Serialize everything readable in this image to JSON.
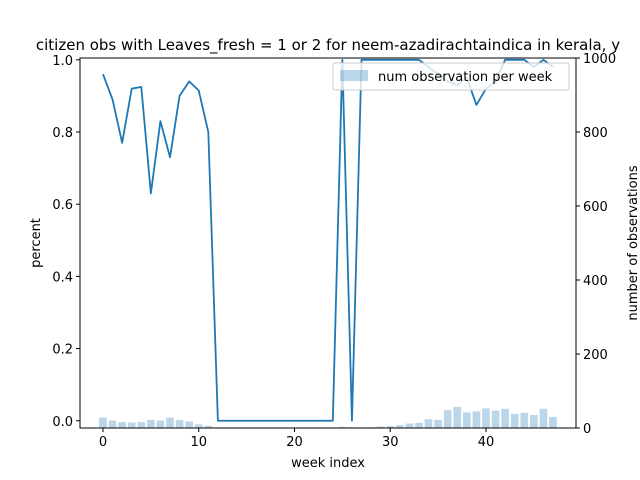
{
  "chart_data": {
    "type": "line",
    "title": "citizen obs with Leaves_fresh = 1 or 2 for neem-azadirachtaindica in kerala, y",
    "xlabel": "week index",
    "ylabel": "percent",
    "y2label": "number of observations",
    "xlim": [
      -2.4,
      49.4
    ],
    "ylim": [
      -0.02,
      1.005
    ],
    "y2lim": [
      0,
      1000
    ],
    "xticks": [
      0,
      10,
      20,
      30,
      40
    ],
    "yticks": [
      0.0,
      0.2,
      0.4,
      0.6,
      0.8,
      1.0
    ],
    "y2ticks": [
      0,
      200,
      400,
      600,
      800,
      1000
    ],
    "legend": {
      "position": "top-right",
      "label": "num observation per week"
    },
    "colors": {
      "line": "#1f77b4",
      "bars": "#1f77b4",
      "bar_opacity": 0.3
    },
    "series": [
      {
        "name": "percent",
        "kind": "line",
        "x": [
          0,
          1,
          2,
          3,
          4,
          5,
          6,
          7,
          8,
          9,
          10,
          11,
          12,
          13,
          14,
          15,
          16,
          17,
          18,
          19,
          20,
          21,
          22,
          23,
          24,
          25,
          26,
          27,
          28,
          29,
          30,
          31,
          32,
          33,
          34,
          35,
          36,
          37,
          38,
          39,
          40,
          41,
          42,
          43,
          44,
          45,
          46,
          47
        ],
        "values": [
          0.96,
          0.89,
          0.77,
          0.92,
          0.925,
          0.63,
          0.83,
          0.73,
          0.9,
          0.94,
          0.915,
          0.8,
          0.0,
          0.0,
          0.0,
          0.0,
          0.0,
          0.0,
          0.0,
          0.0,
          0.0,
          0.0,
          0.0,
          0.0,
          0.0,
          1.0,
          0.0,
          1.0,
          1.0,
          1.0,
          1.0,
          1.0,
          1.0,
          1.0,
          0.98,
          0.96,
          0.94,
          0.93,
          0.95,
          0.875,
          0.92,
          0.94,
          1.0,
          1.0,
          1.0,
          0.98,
          1.0,
          0.98
        ]
      },
      {
        "name": "num observation per week",
        "kind": "bar",
        "x": [
          0,
          1,
          2,
          3,
          4,
          5,
          6,
          7,
          8,
          9,
          10,
          11,
          12,
          13,
          14,
          15,
          16,
          17,
          18,
          19,
          20,
          21,
          22,
          23,
          24,
          25,
          26,
          27,
          28,
          29,
          30,
          31,
          32,
          33,
          34,
          35,
          36,
          37,
          38,
          39,
          40,
          41,
          42,
          43,
          44,
          45,
          46,
          47
        ],
        "values": [
          28,
          20,
          16,
          15,
          16,
          22,
          20,
          28,
          22,
          18,
          10,
          6,
          0,
          0,
          0,
          0,
          0,
          0,
          0,
          0,
          0,
          0,
          0,
          0,
          0,
          3,
          2,
          2,
          2,
          4,
          5,
          8,
          12,
          14,
          24,
          22,
          48,
          57,
          42,
          45,
          53,
          47,
          52,
          38,
          41,
          35,
          52,
          30
        ]
      }
    ]
  }
}
